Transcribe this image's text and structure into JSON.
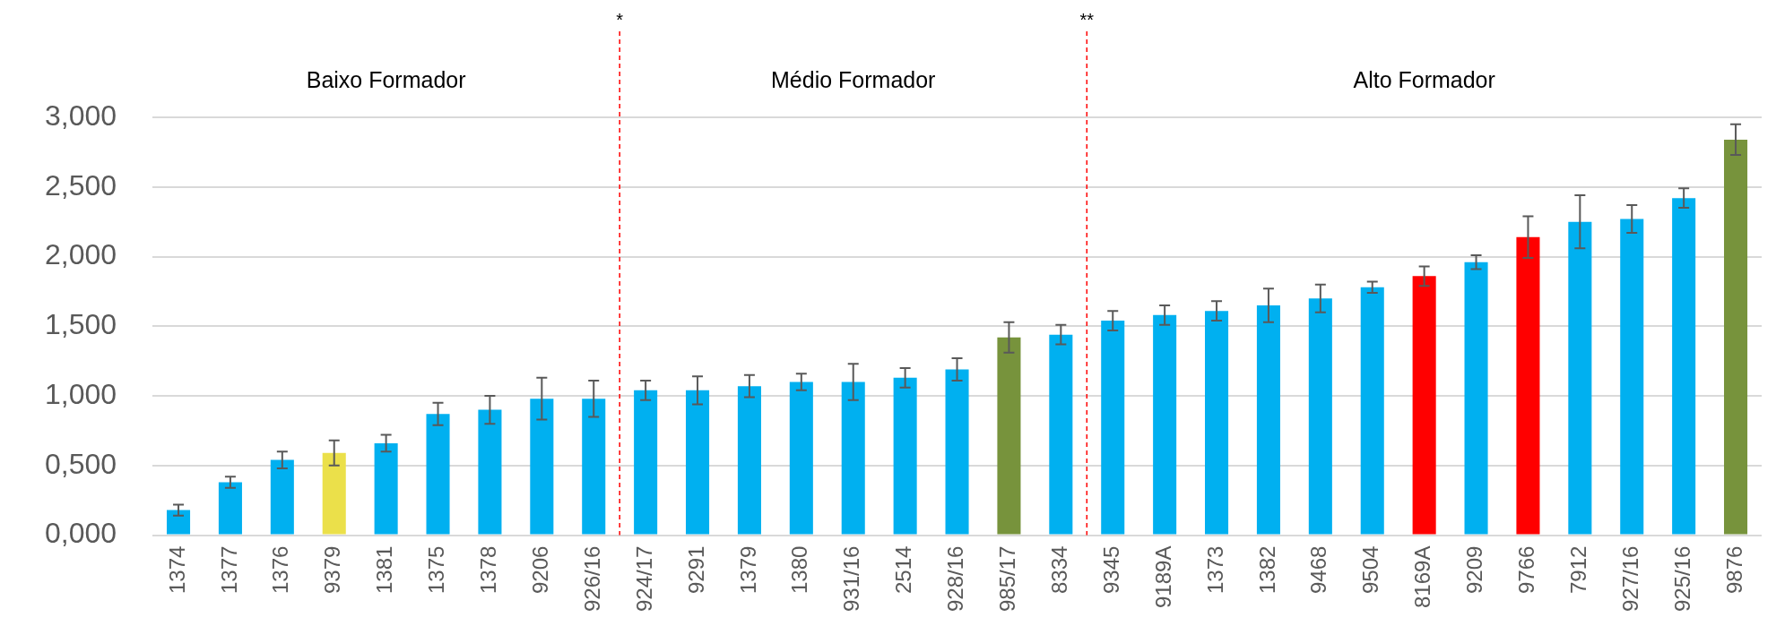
{
  "chart_data": {
    "type": "bar",
    "categories": [
      "1374",
      "1377",
      "1376",
      "9379",
      "1381",
      "1375",
      "1378",
      "9206",
      "926/16",
      "924/17",
      "9291",
      "1379",
      "1380",
      "931/16",
      "2514",
      "928/16",
      "985/17",
      "8334",
      "9345",
      "9189A",
      "1373",
      "1382",
      "9468",
      "9504",
      "8169A",
      "9209",
      "9766",
      "7912",
      "927/16",
      "925/16",
      "9876"
    ],
    "values": [
      0.18,
      0.38,
      0.54,
      0.59,
      0.66,
      0.87,
      0.9,
      0.98,
      0.98,
      1.04,
      1.04,
      1.07,
      1.1,
      1.1,
      1.13,
      1.19,
      1.42,
      1.44,
      1.54,
      1.58,
      1.61,
      1.65,
      1.7,
      1.78,
      1.86,
      1.96,
      2.14,
      2.25,
      2.27,
      2.42,
      2.84
    ],
    "errors": [
      0.04,
      0.04,
      0.06,
      0.09,
      0.06,
      0.08,
      0.1,
      0.15,
      0.13,
      0.07,
      0.1,
      0.08,
      0.06,
      0.13,
      0.07,
      0.08,
      0.11,
      0.07,
      0.07,
      0.07,
      0.07,
      0.12,
      0.1,
      0.04,
      0.07,
      0.05,
      0.15,
      0.19,
      0.1,
      0.07,
      0.11
    ],
    "colors": [
      "#00b0f0",
      "#00b0f0",
      "#00b0f0",
      "#ebe04a",
      "#00b0f0",
      "#00b0f0",
      "#00b0f0",
      "#00b0f0",
      "#00b0f0",
      "#00b0f0",
      "#00b0f0",
      "#00b0f0",
      "#00b0f0",
      "#00b0f0",
      "#00b0f0",
      "#00b0f0",
      "#77933c",
      "#00b0f0",
      "#00b0f0",
      "#00b0f0",
      "#00b0f0",
      "#00b0f0",
      "#00b0f0",
      "#00b0f0",
      "#ff0000",
      "#00b0f0",
      "#ff0000",
      "#00b0f0",
      "#00b0f0",
      "#00b0f0",
      "#77933c"
    ],
    "ylim": [
      0,
      3
    ],
    "yticks": [
      {
        "value": 0,
        "label": "0,000"
      },
      {
        "value": 0.5,
        "label": "0,500"
      },
      {
        "value": 1,
        "label": "1,000"
      },
      {
        "value": 1.5,
        "label": "1,500"
      },
      {
        "value": 2,
        "label": "2,000"
      },
      {
        "value": 2.5,
        "label": "2,500"
      },
      {
        "value": 3,
        "label": "3,000"
      }
    ],
    "grid": "y",
    "legend": false,
    "annotations": [
      "Baixo Formador",
      "Médio Formador",
      "Alto Formador",
      "*",
      "**"
    ]
  }
}
